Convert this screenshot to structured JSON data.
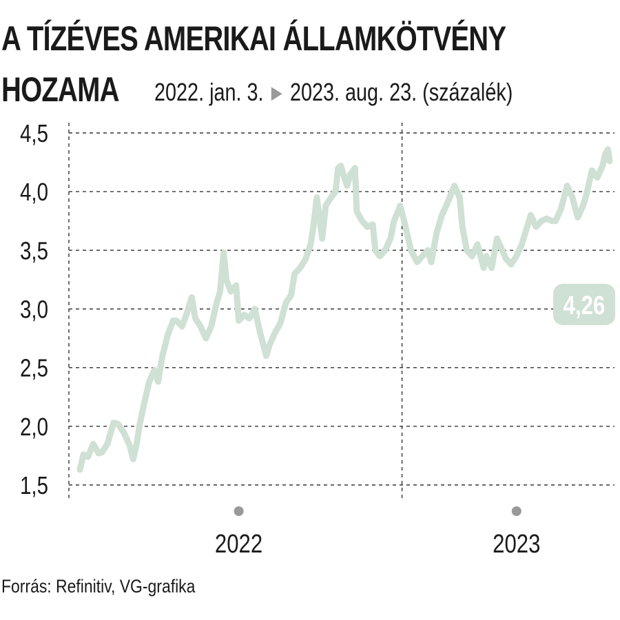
{
  "header": {
    "title_line1": "A TÍZÉVES AMERIKAI ÁLLAMKÖTVÉNY",
    "title_line2": "HOZAMA",
    "subtitle_start": "2022. jan. 3.",
    "subtitle_end": "2023. aug. 23. (százalék)"
  },
  "source": "Forrás: Refinitiv, VG-grafika",
  "colors": {
    "line": "#cfe0d4",
    "badge": "#cfe0d4",
    "badge_text": "#ffffff",
    "grid": "#333333",
    "marker": "#999999"
  },
  "chart_data": {
    "type": "line",
    "title": "A TÍZÉVES AMERIKAI ÁLLAMKÖTVÉNY HOZAMA",
    "ylabel": "",
    "xlabel": "",
    "ylim": [
      1.5,
      4.5
    ],
    "yticks": [
      "1,5",
      "2,0",
      "2,5",
      "3,0",
      "3,5",
      "4,0",
      "4,5"
    ],
    "x_labels": [
      "2022",
      "2023"
    ],
    "x_range": [
      "2022-01-03",
      "2023-08-23"
    ],
    "grid": true,
    "last_value_label": "4,26",
    "series": [
      {
        "x": [
          "2022-01-03",
          "2022-01-07",
          "2022-01-12",
          "2022-01-18",
          "2022-01-24",
          "2022-01-28",
          "2022-02-03",
          "2022-02-10",
          "2022-02-15",
          "2022-02-22",
          "2022-02-28",
          "2022-03-04",
          "2022-03-08",
          "2022-03-11",
          "2022-03-16",
          "2022-03-22",
          "2022-03-28",
          "2022-04-01",
          "2022-04-06",
          "2022-04-12",
          "2022-04-18",
          "2022-04-22",
          "2022-04-28",
          "2022-05-03",
          "2022-05-09",
          "2022-05-13",
          "2022-05-19",
          "2022-05-25",
          "2022-05-31",
          "2022-06-06",
          "2022-06-10",
          "2022-06-14",
          "2022-06-17",
          "2022-06-22",
          "2022-06-28",
          "2022-07-01",
          "2022-07-07",
          "2022-07-13",
          "2022-07-19",
          "2022-07-25",
          "2022-08-01",
          "2022-08-05",
          "2022-08-11",
          "2022-08-17",
          "2022-08-23",
          "2022-08-29",
          "2022-09-02",
          "2022-09-08",
          "2022-09-14",
          "2022-09-20",
          "2022-09-23",
          "2022-09-27",
          "2022-10-03",
          "2022-10-07",
          "2022-10-13",
          "2022-10-18",
          "2022-10-21",
          "2022-10-24",
          "2022-10-31",
          "2022-11-04",
          "2022-11-09",
          "2022-11-11",
          "2022-11-17",
          "2022-11-23",
          "2022-11-29",
          "2022-12-02",
          "2022-12-07",
          "2022-12-13",
          "2022-12-19",
          "2022-12-23",
          "2022-12-30",
          "2023-01-05",
          "2023-01-11",
          "2023-01-18",
          "2023-01-24",
          "2023-01-30",
          "2023-02-03",
          "2023-02-09",
          "2023-02-15",
          "2023-02-21",
          "2023-03-01",
          "2023-03-07",
          "2023-03-10",
          "2023-03-15",
          "2023-03-21",
          "2023-03-27",
          "2023-04-03",
          "2023-04-06",
          "2023-04-12",
          "2023-04-18",
          "2023-04-24",
          "2023-04-28",
          "2023-05-04",
          "2023-05-10",
          "2023-05-16",
          "2023-05-22",
          "2023-05-26",
          "2023-06-01",
          "2023-06-07",
          "2023-06-13",
          "2023-06-19",
          "2023-06-23",
          "2023-06-29",
          "2023-07-06",
          "2023-07-12",
          "2023-07-18",
          "2023-07-24",
          "2023-07-28",
          "2023-08-03",
          "2023-08-09",
          "2023-08-15",
          "2023-08-18",
          "2023-08-21",
          "2023-08-23"
        ],
        "values": [
          1.63,
          1.76,
          1.74,
          1.85,
          1.77,
          1.78,
          1.85,
          2.03,
          2.02,
          1.94,
          1.84,
          1.72,
          1.85,
          2.0,
          2.18,
          2.38,
          2.48,
          2.38,
          2.6,
          2.78,
          2.9,
          2.9,
          2.85,
          2.95,
          3.1,
          2.92,
          2.85,
          2.75,
          2.85,
          3.05,
          3.15,
          3.48,
          3.25,
          3.15,
          3.2,
          2.9,
          2.95,
          2.92,
          3.0,
          2.8,
          2.6,
          2.7,
          2.8,
          2.88,
          3.05,
          3.12,
          3.3,
          3.35,
          3.42,
          3.55,
          3.7,
          3.95,
          3.6,
          3.88,
          3.95,
          4.0,
          4.2,
          4.22,
          4.05,
          4.15,
          4.2,
          3.83,
          3.75,
          3.7,
          3.72,
          3.5,
          3.45,
          3.5,
          3.6,
          3.75,
          3.88,
          3.7,
          3.5,
          3.4,
          3.45,
          3.5,
          3.4,
          3.65,
          3.8,
          3.9,
          4.05,
          3.95,
          3.7,
          3.5,
          3.45,
          3.55,
          3.35,
          3.45,
          3.35,
          3.6,
          3.5,
          3.43,
          3.38,
          3.45,
          3.55,
          3.7,
          3.8,
          3.7,
          3.75,
          3.77,
          3.75,
          3.75,
          3.85,
          4.05,
          3.95,
          3.78,
          3.88,
          3.98,
          4.18,
          4.12,
          4.22,
          4.32,
          4.36,
          4.26
        ]
      }
    ]
  }
}
